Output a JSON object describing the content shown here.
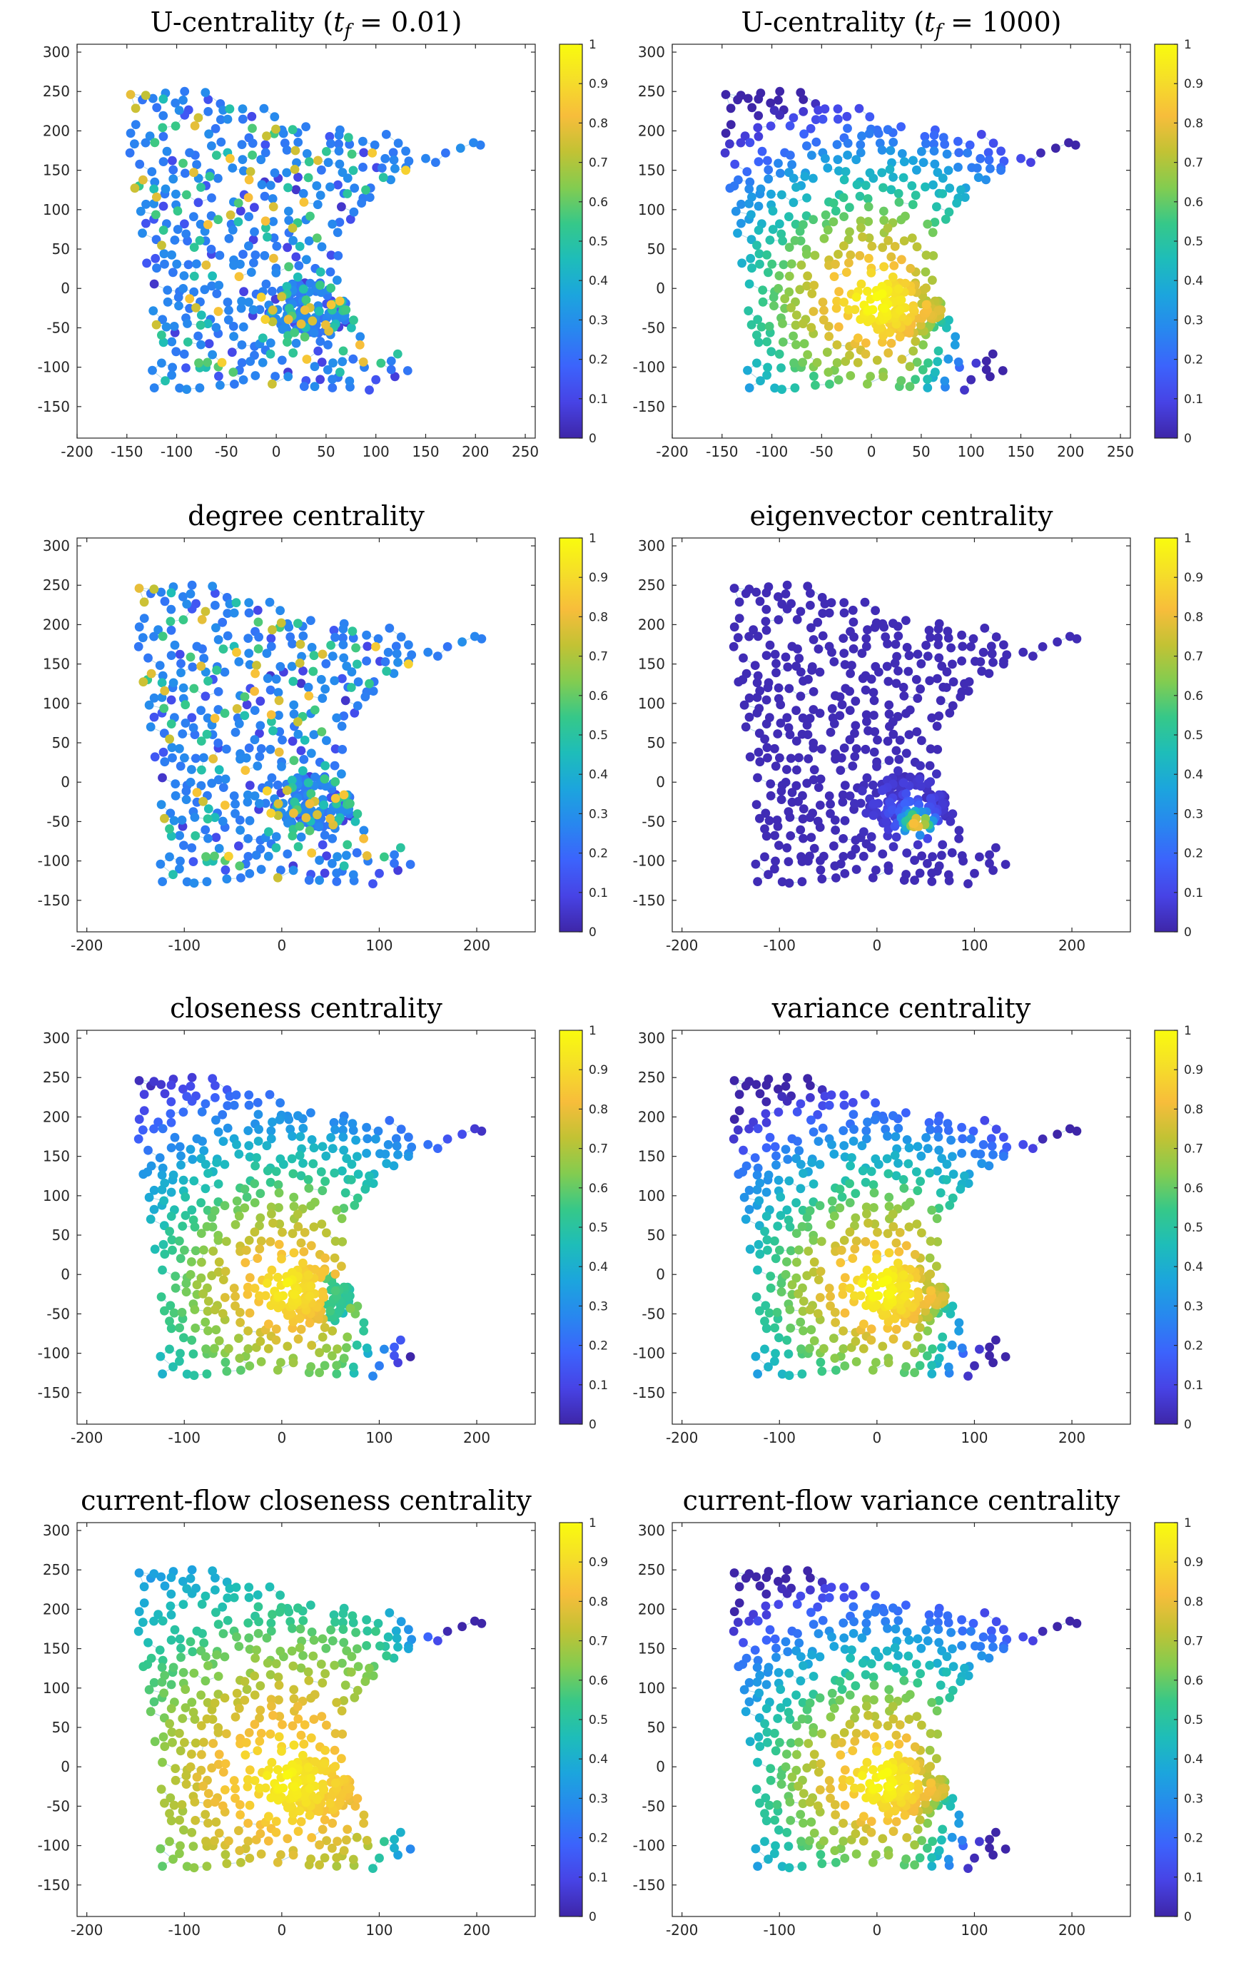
{
  "figure": {
    "colormap": "parula",
    "colormap_stops": [
      "#3e26a8",
      "#4743e5",
      "#3c63fc",
      "#2887ef",
      "#1ca5dd",
      "#1ebdb9",
      "#36c889",
      "#83cc50",
      "#c2c234",
      "#f7bd3b",
      "#f5de29",
      "#f9fb0e"
    ],
    "edge_color": "#8fc3dc"
  },
  "chart_data": [
    {
      "type": "scatter",
      "title": "U-centrality (t_f = 0.01)",
      "title_prefix": "U-centrality (",
      "title_var": "t",
      "title_sub": "f",
      "title_suffix": " = 0.01)",
      "color_profile": "local",
      "xlim": [
        -200,
        260
      ],
      "ylim": [
        -190,
        310
      ],
      "xticks": [
        -200,
        -150,
        -100,
        -50,
        0,
        50,
        100,
        150,
        200,
        250
      ],
      "yticks": [
        -150,
        -100,
        -50,
        0,
        50,
        100,
        150,
        200,
        250,
        300
      ],
      "colorbar": {
        "range": [
          0,
          1
        ],
        "ticks": [
          "0",
          "0.1",
          "0.2",
          "0.3",
          "0.4",
          "0.5",
          "0.6",
          "0.7",
          "0.8",
          "0.9",
          "1"
        ]
      }
    },
    {
      "type": "scatter",
      "title": "U-centrality (t_f = 1000)",
      "title_prefix": "U-centrality (",
      "title_var": "t",
      "title_sub": "f",
      "title_suffix": " = 1000)",
      "color_profile": "center",
      "xlim": [
        -200,
        260
      ],
      "ylim": [
        -190,
        310
      ],
      "xticks": [
        -200,
        -150,
        -100,
        -50,
        0,
        50,
        100,
        150,
        200,
        250
      ],
      "yticks": [
        -150,
        -100,
        -50,
        0,
        50,
        100,
        150,
        200,
        250,
        300
      ],
      "colorbar": {
        "range": [
          0,
          1
        ],
        "ticks": [
          "0",
          "0.1",
          "0.2",
          "0.3",
          "0.4",
          "0.5",
          "0.6",
          "0.7",
          "0.8",
          "0.9",
          "1"
        ]
      }
    },
    {
      "type": "scatter",
      "title": "degree centrality",
      "color_profile": "local",
      "xlim": [
        -210,
        260
      ],
      "ylim": [
        -190,
        310
      ],
      "xticks": [
        -200,
        -100,
        0,
        100,
        200
      ],
      "yticks": [
        -150,
        -100,
        -50,
        0,
        50,
        100,
        150,
        200,
        250,
        300
      ],
      "colorbar": {
        "range": [
          0,
          1
        ],
        "ticks": [
          "0",
          "0.1",
          "0.2",
          "0.3",
          "0.4",
          "0.5",
          "0.6",
          "0.7",
          "0.8",
          "0.9",
          "1"
        ]
      }
    },
    {
      "type": "scatter",
      "title": "eigenvector centrality",
      "color_profile": "eigen",
      "xlim": [
        -210,
        260
      ],
      "ylim": [
        -190,
        310
      ],
      "xticks": [
        -200,
        -100,
        0,
        100,
        200
      ],
      "yticks": [
        -150,
        -100,
        -50,
        0,
        50,
        100,
        150,
        200,
        250,
        300
      ],
      "colorbar": {
        "range": [
          0,
          1
        ],
        "ticks": [
          "0",
          "0.1",
          "0.2",
          "0.3",
          "0.4",
          "0.5",
          "0.6",
          "0.7",
          "0.8",
          "0.9",
          "1"
        ]
      }
    },
    {
      "type": "scatter",
      "title": "closeness centrality",
      "color_profile": "closeness",
      "xlim": [
        -210,
        260
      ],
      "ylim": [
        -190,
        310
      ],
      "xticks": [
        -200,
        -100,
        0,
        100,
        200
      ],
      "yticks": [
        -150,
        -100,
        -50,
        0,
        50,
        100,
        150,
        200,
        250,
        300
      ],
      "colorbar": {
        "range": [
          0,
          1
        ],
        "ticks": [
          "0",
          "0.1",
          "0.2",
          "0.3",
          "0.4",
          "0.5",
          "0.6",
          "0.7",
          "0.8",
          "0.9",
          "1"
        ]
      }
    },
    {
      "type": "scatter",
      "title": "variance centrality",
      "color_profile": "center",
      "xlim": [
        -210,
        260
      ],
      "ylim": [
        -190,
        310
      ],
      "xticks": [
        -200,
        -100,
        0,
        100,
        200
      ],
      "yticks": [
        -150,
        -100,
        -50,
        0,
        50,
        100,
        150,
        200,
        250,
        300
      ],
      "colorbar": {
        "range": [
          0,
          1
        ],
        "ticks": [
          "0",
          "0.1",
          "0.2",
          "0.3",
          "0.4",
          "0.5",
          "0.6",
          "0.7",
          "0.8",
          "0.9",
          "1"
        ]
      }
    },
    {
      "type": "scatter",
      "title": "current-flow closeness centrality",
      "color_profile": "flow-closeness",
      "xlim": [
        -210,
        260
      ],
      "ylim": [
        -190,
        310
      ],
      "xticks": [
        -200,
        -100,
        0,
        100,
        200
      ],
      "yticks": [
        -150,
        -100,
        -50,
        0,
        50,
        100,
        150,
        200,
        250,
        300
      ],
      "colorbar": {
        "range": [
          0,
          1
        ],
        "ticks": [
          "0",
          "0.1",
          "0.2",
          "0.3",
          "0.4",
          "0.5",
          "0.6",
          "0.7",
          "0.8",
          "0.9",
          "1"
        ]
      }
    },
    {
      "type": "scatter",
      "title": "current-flow variance centrality",
      "color_profile": "center",
      "xlim": [
        -210,
        260
      ],
      "ylim": [
        -190,
        310
      ],
      "xticks": [
        -200,
        -100,
        0,
        100,
        200
      ],
      "yticks": [
        -150,
        -100,
        -50,
        0,
        50,
        100,
        150,
        200,
        250,
        300
      ],
      "colorbar": {
        "range": [
          0,
          1
        ],
        "ticks": [
          "0",
          "0.1",
          "0.2",
          "0.3",
          "0.4",
          "0.5",
          "0.6",
          "0.7",
          "0.8",
          "0.9",
          "1"
        ]
      }
    }
  ]
}
